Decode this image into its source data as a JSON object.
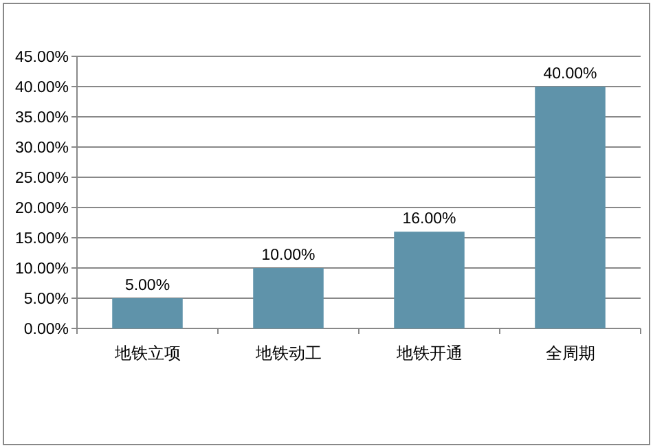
{
  "chart_data": {
    "type": "bar",
    "categories": [
      "地铁立项",
      "地铁动工",
      "地铁开通",
      "全周期"
    ],
    "values": [
      5,
      10,
      16,
      40
    ],
    "color": "#5f93aa",
    "value_labels": [
      "5.00%",
      "10.00%",
      "16.00%",
      "40.00%"
    ],
    "ylim": [
      0,
      45
    ],
    "yticks": [
      {
        "value": 0,
        "label": "0.00%"
      },
      {
        "value": 5,
        "label": "5.00%"
      },
      {
        "value": 10,
        "label": "10.00%"
      },
      {
        "value": 15,
        "label": "15.00%"
      },
      {
        "value": 20,
        "label": "20.00%"
      },
      {
        "value": 25,
        "label": "25.00%"
      },
      {
        "value": 30,
        "label": "30.00%"
      },
      {
        "value": 35,
        "label": "35.00%"
      },
      {
        "value": 40,
        "label": "40.00%"
      },
      {
        "value": 45,
        "label": "45.00%"
      }
    ],
    "grid": "y"
  }
}
